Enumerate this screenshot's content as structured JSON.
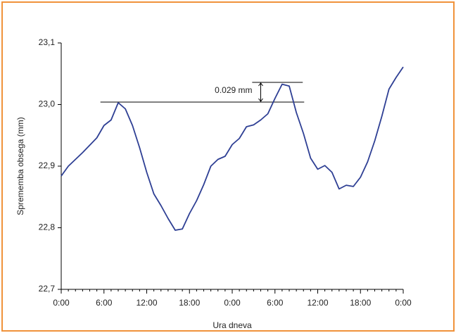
{
  "chart_data": {
    "type": "line",
    "xlabel": "Ura dneva",
    "ylabel": "Sprememba obsega (mm)",
    "x": [
      0,
      1,
      2,
      3,
      4,
      5,
      6,
      7,
      8,
      9,
      10,
      11,
      12,
      13,
      14,
      15,
      16,
      17,
      18,
      19,
      20,
      21,
      22,
      23,
      24,
      25,
      26,
      27,
      28,
      29,
      30,
      31,
      32,
      33,
      34,
      35,
      36,
      37,
      38,
      39,
      40,
      41,
      42,
      43,
      44,
      45,
      46,
      47,
      48
    ],
    "series": [
      {
        "color": "#2e3f94",
        "values": [
          22.884,
          22.9,
          22.911,
          22.922,
          22.934,
          22.946,
          22.966,
          22.975,
          23.003,
          22.993,
          22.966,
          22.93,
          22.89,
          22.855,
          22.836,
          22.815,
          22.796,
          22.798,
          22.823,
          22.844,
          22.87,
          22.9,
          22.911,
          22.916,
          22.935,
          22.945,
          22.964,
          22.967,
          22.975,
          22.985,
          23.01,
          23.033,
          23.03,
          22.987,
          22.953,
          22.913,
          22.895,
          22.901,
          22.89,
          22.863,
          22.869,
          22.867,
          22.882,
          22.907,
          22.941,
          22.981,
          23.025,
          23.044,
          23.061
        ]
      }
    ],
    "xlim": [
      0,
      48
    ],
    "xticks": [
      {
        "value": 0,
        "label": "0:00"
      },
      {
        "value": 6,
        "label": "6:00"
      },
      {
        "value": 12,
        "label": "12:00"
      },
      {
        "value": 18,
        "label": "18:00"
      },
      {
        "value": 24,
        "label": "0:00"
      },
      {
        "value": 30,
        "label": "6:00"
      },
      {
        "value": 36,
        "label": "12:00"
      },
      {
        "value": 42,
        "label": "18:00"
      },
      {
        "value": 48,
        "label": "0:00"
      }
    ],
    "xminorticks": [
      1,
      2,
      3,
      4,
      5,
      7,
      8,
      9,
      10,
      11,
      13,
      14,
      15,
      16,
      17,
      19,
      20,
      21,
      22,
      23,
      25,
      26,
      27,
      28,
      29,
      31,
      32,
      33,
      34,
      35,
      37,
      38,
      39,
      40,
      41,
      43,
      44,
      45,
      46,
      47
    ],
    "ylim": [
      22.7,
      23.1
    ],
    "yticks": [
      {
        "value": 22.7,
        "label": "22,7"
      },
      {
        "value": 22.8,
        "label": "22,8"
      },
      {
        "value": 22.9,
        "label": "22,9"
      },
      {
        "value": 23.0,
        "label": "23,0"
      },
      {
        "value": 23.1,
        "label": "23,1"
      }
    ],
    "reference_lines": [
      {
        "y": 23.004,
        "x": [
          5.5,
          34.1
        ]
      },
      {
        "y": 23.036,
        "x": [
          26.8,
          33.9
        ]
      }
    ],
    "annotation": {
      "text": "0.029 mm",
      "x": 28
    }
  }
}
